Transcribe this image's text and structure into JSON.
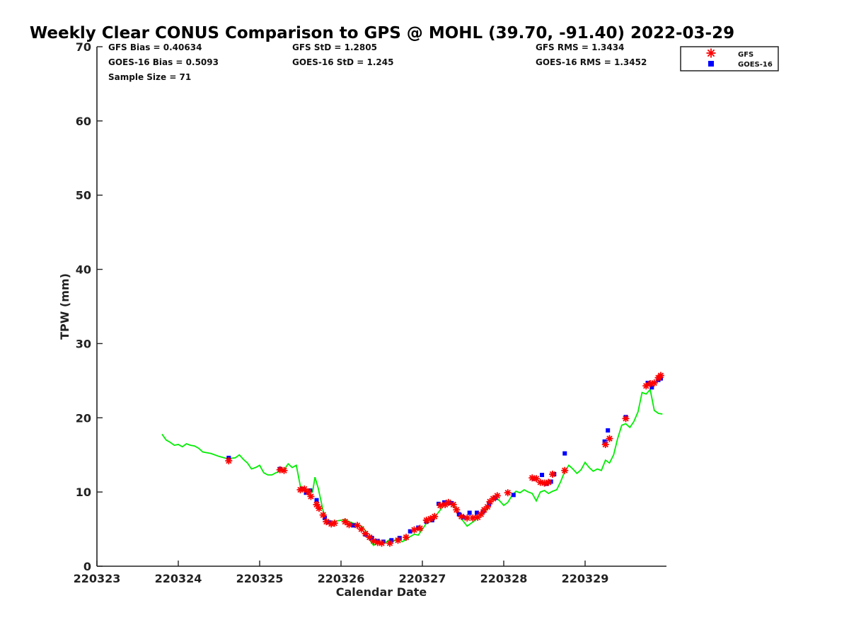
{
  "chart_data": {
    "type": "scatter",
    "title": "Weekly Clear CONUS Comparison to GPS @ MOHL (39.70, -91.40) 2022-03-29",
    "xlabel": "Calendar Date",
    "ylabel": "TPW (mm)",
    "xlim": [
      0,
      7
    ],
    "ylim": [
      0,
      70
    ],
    "x_tick_labels": [
      "220323",
      "220324",
      "220325",
      "220326",
      "220327",
      "220328",
      "220329"
    ],
    "y_ticks": [
      0,
      10,
      20,
      30,
      40,
      50,
      60,
      70
    ],
    "grid": false,
    "legend_position": "top-right",
    "stats": {
      "gfs_bias": "GFS Bias = 0.40634",
      "goes_bias": "GOES-16 Bias = 0.5093",
      "sample_size": "Sample Size = 71",
      "gfs_std": "GFS StD = 1.2805",
      "goes_std": "GOES-16 StD = 1.245",
      "gfs_rms": "GFS RMS = 1.3434",
      "goes_rms": "GOES-16 RMS = 1.3452"
    },
    "series": [
      {
        "name": "GFS",
        "marker": "star",
        "color": "#ff0000",
        "points": [
          [
            1.62,
            14.2
          ],
          [
            2.25,
            13.0
          ],
          [
            2.3,
            12.9
          ],
          [
            2.5,
            10.3
          ],
          [
            2.55,
            10.4
          ],
          [
            2.6,
            10.0
          ],
          [
            2.63,
            9.4
          ],
          [
            2.7,
            8.3
          ],
          [
            2.73,
            7.8
          ],
          [
            2.78,
            6.9
          ],
          [
            2.82,
            6.0
          ],
          [
            2.88,
            5.7
          ],
          [
            2.92,
            5.8
          ],
          [
            3.05,
            6.0
          ],
          [
            3.1,
            5.6
          ],
          [
            3.2,
            5.5
          ],
          [
            3.25,
            5.0
          ],
          [
            3.3,
            4.4
          ],
          [
            3.35,
            3.9
          ],
          [
            3.4,
            3.4
          ],
          [
            3.45,
            3.2
          ],
          [
            3.5,
            3.1
          ],
          [
            3.6,
            3.1
          ],
          [
            3.7,
            3.5
          ],
          [
            3.8,
            3.9
          ],
          [
            3.9,
            4.9
          ],
          [
            3.97,
            5.1
          ],
          [
            4.05,
            6.2
          ],
          [
            4.1,
            6.4
          ],
          [
            4.15,
            6.7
          ],
          [
            4.22,
            8.2
          ],
          [
            4.28,
            8.3
          ],
          [
            4.32,
            8.6
          ],
          [
            4.38,
            8.3
          ],
          [
            4.42,
            7.6
          ],
          [
            4.48,
            6.7
          ],
          [
            4.55,
            6.5
          ],
          [
            4.62,
            6.5
          ],
          [
            4.68,
            6.6
          ],
          [
            4.72,
            7.0
          ],
          [
            4.76,
            7.6
          ],
          [
            4.8,
            8.0
          ],
          [
            4.83,
            8.7
          ],
          [
            4.87,
            9.1
          ],
          [
            4.92,
            9.5
          ],
          [
            5.05,
            9.9
          ],
          [
            5.35,
            11.9
          ],
          [
            5.4,
            11.8
          ],
          [
            5.45,
            11.3
          ],
          [
            5.5,
            11.2
          ],
          [
            5.55,
            11.3
          ],
          [
            5.6,
            12.4
          ],
          [
            5.75,
            12.9
          ],
          [
            6.25,
            16.4
          ],
          [
            6.3,
            17.2
          ],
          [
            6.5,
            19.9
          ],
          [
            6.75,
            24.3
          ],
          [
            6.8,
            24.6
          ],
          [
            6.85,
            24.7
          ],
          [
            6.9,
            25.4
          ],
          [
            6.93,
            25.7
          ]
        ]
      },
      {
        "name": "GOES-16",
        "marker": "square",
        "color": "#0000ff",
        "points": [
          [
            1.62,
            14.6
          ],
          [
            2.25,
            13.1
          ],
          [
            2.52,
            10.4
          ],
          [
            2.57,
            9.9
          ],
          [
            2.62,
            10.2
          ],
          [
            2.7,
            8.9
          ],
          [
            2.8,
            6.5
          ],
          [
            2.85,
            5.9
          ],
          [
            3.15,
            5.5
          ],
          [
            3.3,
            4.3
          ],
          [
            3.38,
            3.8
          ],
          [
            3.45,
            3.4
          ],
          [
            3.52,
            3.3
          ],
          [
            3.62,
            3.5
          ],
          [
            3.72,
            3.8
          ],
          [
            3.85,
            4.7
          ],
          [
            3.95,
            5.2
          ],
          [
            4.05,
            6.0
          ],
          [
            4.12,
            6.2
          ],
          [
            4.2,
            8.4
          ],
          [
            4.27,
            8.6
          ],
          [
            4.35,
            8.5
          ],
          [
            4.45,
            7.0
          ],
          [
            4.5,
            6.6
          ],
          [
            4.58,
            7.2
          ],
          [
            4.67,
            7.2
          ],
          [
            4.75,
            7.4
          ],
          [
            4.82,
            8.4
          ],
          [
            4.9,
            9.2
          ],
          [
            5.12,
            9.6
          ],
          [
            5.38,
            11.8
          ],
          [
            5.47,
            12.3
          ],
          [
            5.52,
            11.1
          ],
          [
            5.58,
            11.4
          ],
          [
            5.62,
            12.4
          ],
          [
            5.75,
            15.2
          ],
          [
            6.24,
            16.8
          ],
          [
            6.28,
            18.3
          ],
          [
            6.5,
            20.1
          ],
          [
            6.77,
            24.7
          ],
          [
            6.82,
            24.1
          ],
          [
            6.9,
            25.1
          ],
          [
            6.93,
            25.3
          ]
        ]
      },
      {
        "name": "GPS",
        "type": "line",
        "color": "#00ee00",
        "points": [
          [
            0.8,
            17.8
          ],
          [
            0.85,
            17.0
          ],
          [
            0.9,
            16.7
          ],
          [
            0.95,
            16.3
          ],
          [
            1.0,
            16.4
          ],
          [
            1.05,
            16.1
          ],
          [
            1.1,
            16.5
          ],
          [
            1.15,
            16.3
          ],
          [
            1.2,
            16.2
          ],
          [
            1.25,
            15.9
          ],
          [
            1.3,
            15.4
          ],
          [
            1.35,
            15.3
          ],
          [
            1.4,
            15.2
          ],
          [
            1.5,
            14.8
          ],
          [
            1.6,
            14.5
          ],
          [
            1.7,
            14.6
          ],
          [
            1.75,
            15.0
          ],
          [
            1.8,
            14.4
          ],
          [
            1.85,
            13.9
          ],
          [
            1.9,
            13.1
          ],
          [
            1.95,
            13.3
          ],
          [
            2.0,
            13.6
          ],
          [
            2.05,
            12.6
          ],
          [
            2.1,
            12.3
          ],
          [
            2.15,
            12.3
          ],
          [
            2.2,
            12.6
          ],
          [
            2.3,
            13.0
          ],
          [
            2.35,
            13.8
          ],
          [
            2.4,
            13.3
          ],
          [
            2.45,
            13.6
          ],
          [
            2.5,
            10.8
          ],
          [
            2.55,
            10.5
          ],
          [
            2.6,
            10.3
          ],
          [
            2.65,
            10.0
          ],
          [
            2.68,
            12.0
          ],
          [
            2.72,
            10.5
          ],
          [
            2.78,
            7.5
          ],
          [
            2.82,
            6.2
          ],
          [
            2.86,
            5.6
          ],
          [
            2.9,
            5.9
          ],
          [
            2.95,
            6.1
          ],
          [
            3.0,
            6.2
          ],
          [
            3.05,
            6.3
          ],
          [
            3.1,
            6.0
          ],
          [
            3.15,
            5.8
          ],
          [
            3.2,
            5.6
          ],
          [
            3.25,
            5.4
          ],
          [
            3.3,
            4.8
          ],
          [
            3.35,
            3.6
          ],
          [
            3.4,
            2.8
          ],
          [
            3.45,
            3.2
          ],
          [
            3.5,
            3.0
          ],
          [
            3.55,
            3.2
          ],
          [
            3.6,
            3.6
          ],
          [
            3.65,
            3.4
          ],
          [
            3.7,
            3.8
          ],
          [
            3.75,
            3.3
          ],
          [
            3.8,
            3.6
          ],
          [
            3.85,
            4.0
          ],
          [
            3.9,
            4.3
          ],
          [
            3.95,
            4.2
          ],
          [
            4.0,
            5.0
          ],
          [
            4.05,
            5.8
          ],
          [
            4.1,
            6.0
          ],
          [
            4.15,
            6.6
          ],
          [
            4.2,
            7.3
          ],
          [
            4.25,
            8.0
          ],
          [
            4.3,
            8.5
          ],
          [
            4.35,
            8.6
          ],
          [
            4.4,
            7.9
          ],
          [
            4.45,
            7.0
          ],
          [
            4.5,
            6.1
          ],
          [
            4.55,
            5.4
          ],
          [
            4.6,
            5.8
          ],
          [
            4.65,
            6.2
          ],
          [
            4.7,
            6.8
          ],
          [
            4.75,
            7.1
          ],
          [
            4.8,
            7.8
          ],
          [
            4.85,
            8.9
          ],
          [
            4.9,
            9.3
          ],
          [
            4.95,
            8.8
          ],
          [
            5.0,
            8.2
          ],
          [
            5.05,
            8.6
          ],
          [
            5.1,
            9.5
          ],
          [
            5.15,
            10.1
          ],
          [
            5.2,
            9.9
          ],
          [
            5.25,
            10.3
          ],
          [
            5.3,
            10.0
          ],
          [
            5.35,
            9.8
          ],
          [
            5.4,
            8.8
          ],
          [
            5.45,
            10.0
          ],
          [
            5.5,
            10.2
          ],
          [
            5.55,
            9.8
          ],
          [
            5.6,
            10.1
          ],
          [
            5.65,
            10.3
          ],
          [
            5.7,
            11.4
          ],
          [
            5.75,
            12.8
          ],
          [
            5.8,
            13.6
          ],
          [
            5.85,
            13.1
          ],
          [
            5.9,
            12.5
          ],
          [
            5.95,
            13.0
          ],
          [
            6.0,
            14.0
          ],
          [
            6.05,
            13.3
          ],
          [
            6.1,
            12.8
          ],
          [
            6.15,
            13.1
          ],
          [
            6.2,
            12.9
          ],
          [
            6.25,
            14.3
          ],
          [
            6.3,
            13.9
          ],
          [
            6.35,
            15.0
          ],
          [
            6.4,
            17.2
          ],
          [
            6.45,
            19.0
          ],
          [
            6.5,
            19.2
          ],
          [
            6.55,
            18.7
          ],
          [
            6.6,
            19.5
          ],
          [
            6.65,
            20.8
          ],
          [
            6.7,
            23.4
          ],
          [
            6.75,
            23.2
          ],
          [
            6.8,
            23.8
          ],
          [
            6.85,
            21.0
          ],
          [
            6.9,
            20.6
          ],
          [
            6.95,
            20.5
          ]
        ]
      }
    ]
  }
}
